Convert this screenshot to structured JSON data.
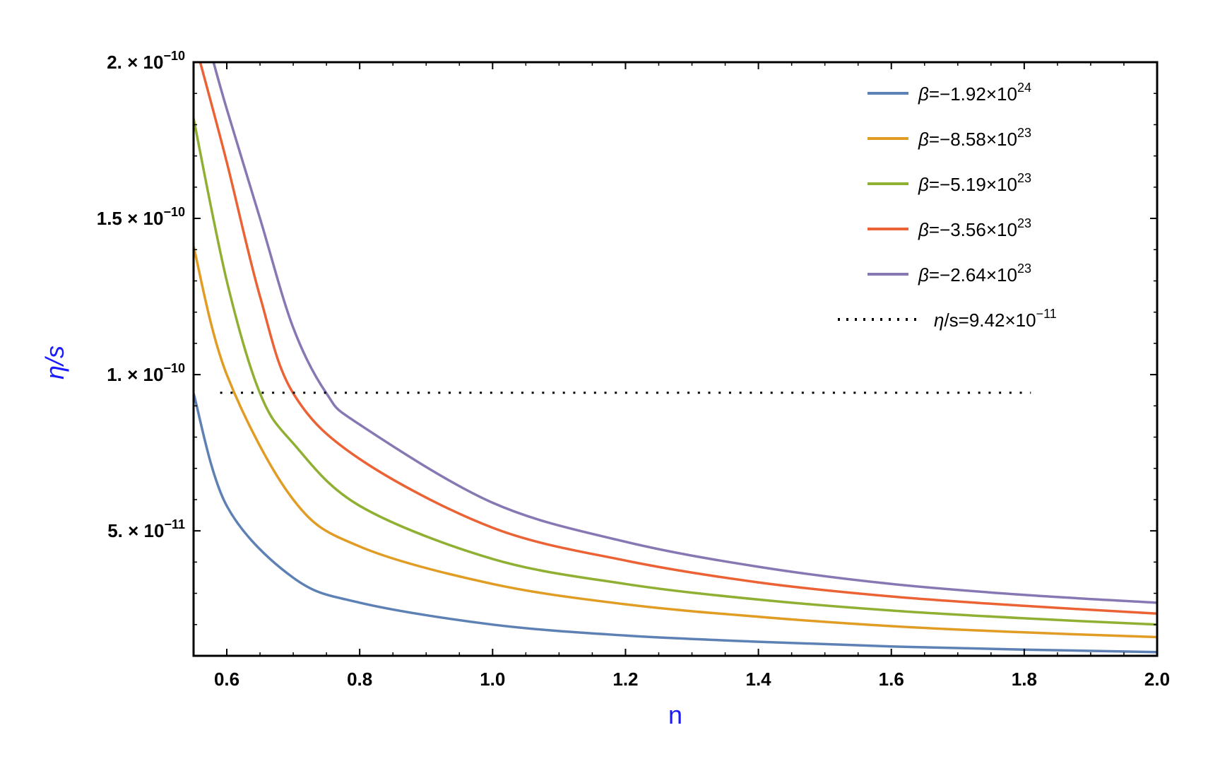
{
  "chart_data": {
    "type": "line",
    "xlabel": "n",
    "ylabel": "η/s",
    "xlim": [
      0.55,
      2.0
    ],
    "ylim": [
      1e-11,
      2e-10
    ],
    "x_ticks": [
      {
        "value": 0.6,
        "label": "0.6"
      },
      {
        "value": 0.8,
        "label": "0.8"
      },
      {
        "value": 1.0,
        "label": "1.0"
      },
      {
        "value": 1.2,
        "label": "1.2"
      },
      {
        "value": 1.4,
        "label": "1.4"
      },
      {
        "value": 1.6,
        "label": "1.6"
      },
      {
        "value": 1.8,
        "label": "1.8"
      },
      {
        "value": 2.0,
        "label": "2.0"
      }
    ],
    "y_ticks": [
      {
        "value": 5e-11,
        "mantissa": "5.",
        "times": "×",
        "base": "10",
        "exp": "−11"
      },
      {
        "value": 1e-10,
        "mantissa": "1.",
        "times": "×",
        "base": "10",
        "exp": "−10"
      },
      {
        "value": 1.5e-10,
        "mantissa": "1.5",
        "times": "×",
        "base": "10",
        "exp": "−10"
      },
      {
        "value": 2e-10,
        "mantissa": "2.",
        "times": "×",
        "base": "10",
        "exp": "−10"
      }
    ],
    "grid": false,
    "legend_position": "top-right",
    "series": [
      {
        "name": "β=−1.92×10",
        "name_sup": "24",
        "color": "#5e81b5",
        "style": "solid",
        "x": [
          0.55,
          0.6,
          0.7,
          0.8,
          1.0,
          1.2,
          1.4,
          1.6,
          1.8,
          2.0
        ],
        "y": [
          9.4e-11,
          5.8e-11,
          3.5e-11,
          2.7e-11,
          2e-11,
          1.65e-11,
          1.45e-11,
          1.3e-11,
          1.2e-11,
          1.12e-11
        ]
      },
      {
        "name": "β=−8.58×10",
        "name_sup": "23",
        "color": "#e19c24",
        "style": "solid",
        "x": [
          0.55,
          0.6,
          0.7,
          0.8,
          1.0,
          1.2,
          1.4,
          1.6,
          1.8,
          2.0
        ],
        "y": [
          1.41e-10,
          1e-10,
          6e-11,
          4.5e-11,
          3.3e-11,
          2.65e-11,
          2.25e-11,
          1.95e-11,
          1.75e-11,
          1.6e-11
        ]
      },
      {
        "name": "β=−5.19×10",
        "name_sup": "23",
        "color": "#8fb032",
        "style": "solid",
        "x": [
          0.55,
          0.6,
          0.65,
          0.7,
          0.8,
          1.0,
          1.2,
          1.4,
          1.6,
          1.8,
          2.0
        ],
        "y": [
          1.82e-10,
          1.3e-10,
          9.4e-11,
          7.8e-11,
          5.8e-11,
          4.1e-11,
          3.3e-11,
          2.8e-11,
          2.45e-11,
          2.2e-11,
          2e-11
        ]
      },
      {
        "name": "β=−3.56×10",
        "name_sup": "23",
        "color": "#eb6235",
        "style": "solid",
        "x": [
          0.56,
          0.6,
          0.65,
          0.7,
          0.8,
          1.0,
          1.2,
          1.4,
          1.6,
          1.8,
          2.0
        ],
        "y": [
          2e-10,
          1.68e-10,
          1.25e-10,
          9.4e-11,
          7.3e-11,
          5.1e-11,
          4.05e-11,
          3.35e-11,
          2.9e-11,
          2.6e-11,
          2.35e-11
        ]
      },
      {
        "name": "β=−2.64×10",
        "name_sup": "23",
        "color": "#8778b3",
        "style": "solid",
        "x": [
          0.58,
          0.6,
          0.65,
          0.7,
          0.75,
          0.8,
          1.0,
          1.2,
          1.4,
          1.6,
          1.8,
          2.0
        ],
        "y": [
          2e-10,
          1.85e-10,
          1.5e-10,
          1.15e-10,
          9.4e-11,
          8.4e-11,
          5.9e-11,
          4.65e-11,
          3.85e-11,
          3.3e-11,
          2.95e-11,
          2.7e-11
        ]
      },
      {
        "name": "η/s=9.42×10",
        "name_sup": "−11",
        "color": "#000000",
        "style": "dotted",
        "x": [
          0.59,
          1.81
        ],
        "y": [
          9.42e-11,
          9.42e-11
        ]
      }
    ]
  }
}
